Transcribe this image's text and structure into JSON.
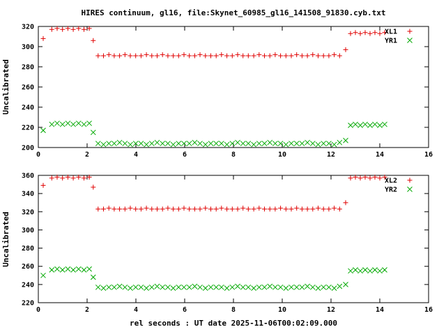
{
  "colors": {
    "red": "#e00000",
    "green": "#00a800",
    "text": "#000000",
    "background": "#ffffff",
    "axis": "#000000"
  },
  "chart_data": [
    {
      "type": "scatter",
      "title": "HIRES continuum, gl16, file:Skynet_60985_gl16_141508_91830.cyb.txt",
      "ylabel": "Uncalibrated",
      "xlim": [
        0,
        16
      ],
      "ylim": [
        200,
        320
      ],
      "xtick_step": 2,
      "ytick_step": 20,
      "grid": false,
      "legend_position": "top-right",
      "x": [
        0.2,
        0.55,
        0.77,
        0.99,
        1.21,
        1.43,
        1.65,
        1.87,
        2.09,
        2.25,
        2.45,
        2.67,
        2.89,
        3.11,
        3.33,
        3.55,
        3.77,
        3.99,
        4.21,
        4.43,
        4.65,
        4.87,
        5.09,
        5.31,
        5.53,
        5.75,
        5.97,
        6.19,
        6.41,
        6.63,
        6.85,
        7.07,
        7.29,
        7.51,
        7.73,
        7.95,
        8.17,
        8.39,
        8.61,
        8.83,
        9.05,
        9.27,
        9.49,
        9.71,
        9.93,
        10.15,
        10.37,
        10.59,
        10.81,
        11.03,
        11.25,
        11.47,
        11.69,
        11.91,
        12.13,
        12.35,
        12.6,
        12.8,
        13.0,
        13.2,
        13.4,
        13.6,
        13.8,
        14.0,
        14.2
      ],
      "series": [
        {
          "name": "XL1",
          "marker": "plus",
          "color": "#e00000",
          "y": [
            308,
            317,
            318,
            317,
            318,
            317,
            318,
            317,
            318,
            306,
            291,
            291,
            292,
            291,
            291,
            292,
            291,
            291,
            291,
            292,
            291,
            291,
            292,
            291,
            291,
            291,
            292,
            291,
            291,
            292,
            291,
            291,
            291,
            292,
            291,
            291,
            292,
            291,
            291,
            291,
            292,
            291,
            291,
            292,
            291,
            291,
            291,
            292,
            291,
            291,
            292,
            291,
            291,
            291,
            292,
            291,
            297,
            313,
            314,
            313,
            314,
            313,
            314,
            313,
            314
          ]
        },
        {
          "name": "YR1",
          "marker": "cross",
          "color": "#00a800",
          "y": [
            217,
            223,
            224,
            223,
            224,
            223,
            224,
            223,
            224,
            215,
            204,
            203,
            204,
            204,
            205,
            204,
            203,
            204,
            204,
            203,
            204,
            205,
            204,
            204,
            203,
            204,
            204,
            204,
            205,
            204,
            203,
            204,
            204,
            204,
            203,
            204,
            205,
            204,
            204,
            203,
            204,
            204,
            205,
            204,
            204,
            203,
            204,
            204,
            204,
            205,
            204,
            203,
            204,
            204,
            203,
            205,
            207,
            222,
            223,
            222,
            223,
            222,
            223,
            222,
            223
          ]
        }
      ]
    },
    {
      "type": "scatter",
      "title": "",
      "ylabel": "Uncalibrated",
      "xlabel": "rel seconds : UT date 2025-11-06T00:02:09.000",
      "xlim": [
        0,
        16
      ],
      "ylim": [
        220,
        360
      ],
      "xtick_step": 2,
      "ytick_step": 20,
      "grid": false,
      "legend_position": "top-right",
      "x": [
        0.2,
        0.55,
        0.77,
        0.99,
        1.21,
        1.43,
        1.65,
        1.87,
        2.09,
        2.25,
        2.45,
        2.67,
        2.89,
        3.11,
        3.33,
        3.55,
        3.77,
        3.99,
        4.21,
        4.43,
        4.65,
        4.87,
        5.09,
        5.31,
        5.53,
        5.75,
        5.97,
        6.19,
        6.41,
        6.63,
        6.85,
        7.07,
        7.29,
        7.51,
        7.73,
        7.95,
        8.17,
        8.39,
        8.61,
        8.83,
        9.05,
        9.27,
        9.49,
        9.71,
        9.93,
        10.15,
        10.37,
        10.59,
        10.81,
        11.03,
        11.25,
        11.47,
        11.69,
        11.91,
        12.13,
        12.35,
        12.6,
        12.8,
        13.0,
        13.2,
        13.4,
        13.6,
        13.8,
        14.0,
        14.2
      ],
      "series": [
        {
          "name": "XL2",
          "marker": "plus",
          "color": "#e00000",
          "y": [
            349,
            357,
            358,
            357,
            358,
            357,
            358,
            357,
            358,
            347,
            323,
            323,
            324,
            323,
            323,
            323,
            324,
            323,
            323,
            324,
            323,
            323,
            323,
            324,
            323,
            323,
            324,
            323,
            323,
            323,
            324,
            323,
            323,
            324,
            323,
            323,
            323,
            324,
            323,
            323,
            324,
            323,
            323,
            323,
            324,
            323,
            323,
            324,
            323,
            323,
            323,
            324,
            323,
            323,
            324,
            323,
            330,
            357,
            358,
            357,
            358,
            357,
            358,
            357,
            358
          ]
        },
        {
          "name": "YR2",
          "marker": "cross",
          "color": "#00a800",
          "y": [
            250,
            256,
            257,
            256,
            257,
            256,
            257,
            256,
            257,
            248,
            237,
            236,
            237,
            237,
            238,
            237,
            236,
            237,
            237,
            236,
            237,
            238,
            237,
            237,
            236,
            237,
            237,
            237,
            238,
            237,
            236,
            237,
            237,
            237,
            236,
            237,
            238,
            237,
            237,
            236,
            237,
            237,
            238,
            237,
            237,
            236,
            237,
            237,
            237,
            238,
            237,
            236,
            237,
            237,
            236,
            238,
            240,
            255,
            256,
            255,
            256,
            255,
            256,
            255,
            256
          ]
        }
      ]
    }
  ]
}
